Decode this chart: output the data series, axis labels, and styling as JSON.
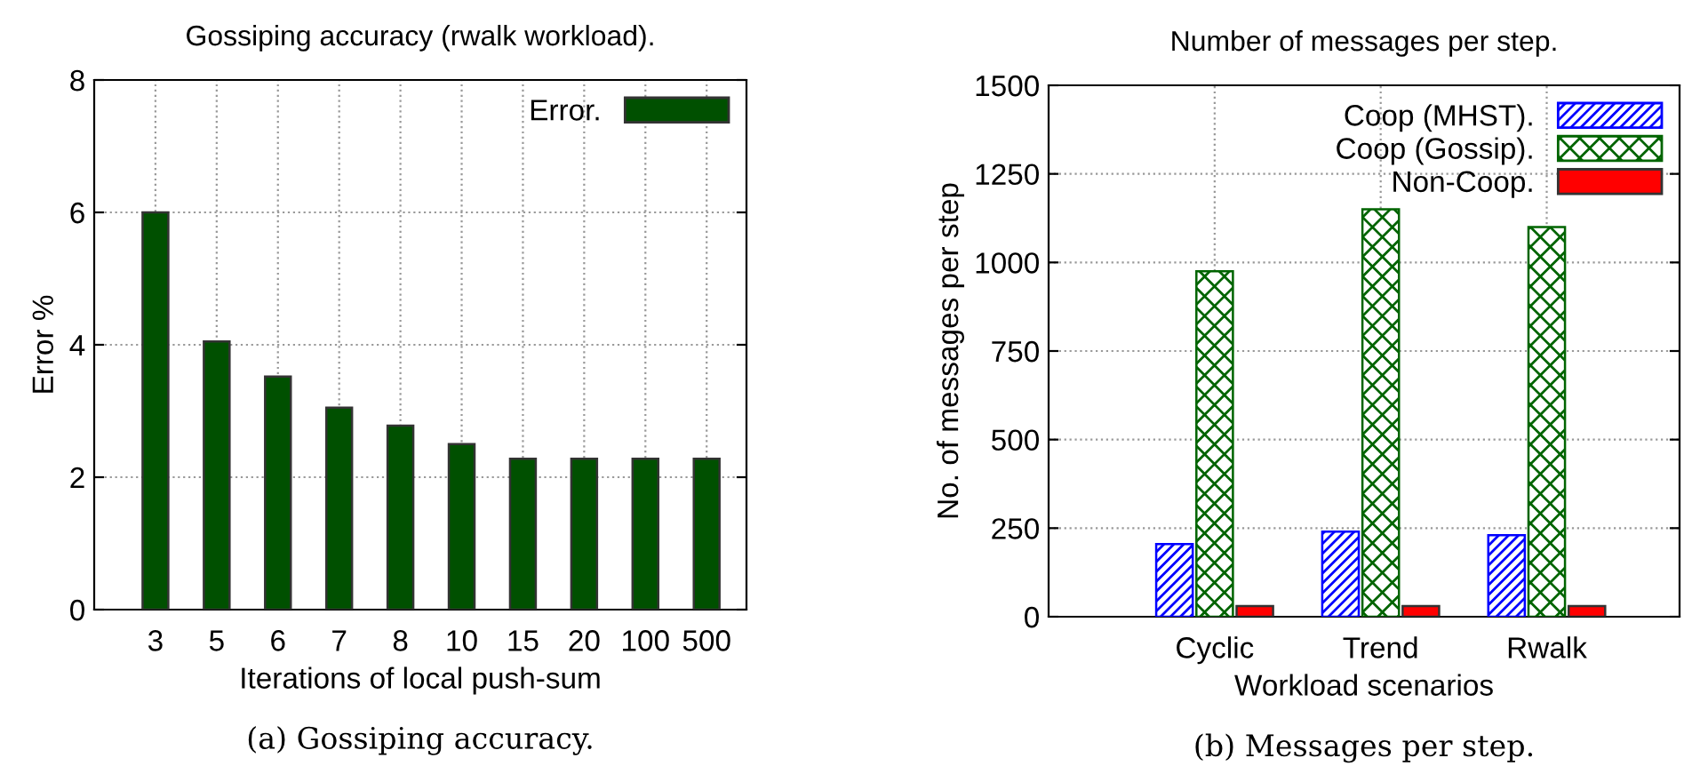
{
  "chart_data": [
    {
      "type": "bar",
      "title": "Gossiping accuracy (rwalk workload).",
      "xlabel": "Iterations of local push-sum",
      "ylabel": "Error %",
      "categories": [
        "3",
        "5",
        "6",
        "7",
        "8",
        "10",
        "15",
        "20",
        "100",
        "500"
      ],
      "series": [
        {
          "name": "Error.",
          "color": "#005000",
          "values": [
            6.0,
            4.05,
            3.52,
            3.05,
            2.78,
            2.5,
            2.28,
            2.28,
            2.28,
            2.28
          ]
        }
      ],
      "ylim": [
        0,
        8
      ],
      "yticks": [
        0,
        2,
        4,
        6,
        8
      ],
      "grid": true,
      "legend": "top right",
      "annotations": [
        "(a) Gossiping accuracy."
      ]
    },
    {
      "type": "bar",
      "title": "Number of messages per step.",
      "xlabel": "Workload scenarios",
      "ylabel": "No. of messages per step",
      "categories": [
        "Cyclic",
        "Trend",
        "Rwalk"
      ],
      "series": [
        {
          "name": "Coop (MHST).",
          "color": "#0000ff",
          "values": [
            205,
            240,
            230
          ]
        },
        {
          "name": "Coop (Gossip).",
          "color": "#006400",
          "values": [
            975,
            1150,
            1100
          ]
        },
        {
          "name": "Non-Coop.",
          "color": "#ff0000",
          "values": [
            30,
            30,
            30
          ]
        }
      ],
      "ylim": [
        0,
        1500
      ],
      "yticks": [
        0,
        250,
        500,
        750,
        1000,
        1250,
        1500
      ],
      "grid": true,
      "legend": "top right",
      "annotations": [
        "(b) Messages per step."
      ]
    }
  ]
}
